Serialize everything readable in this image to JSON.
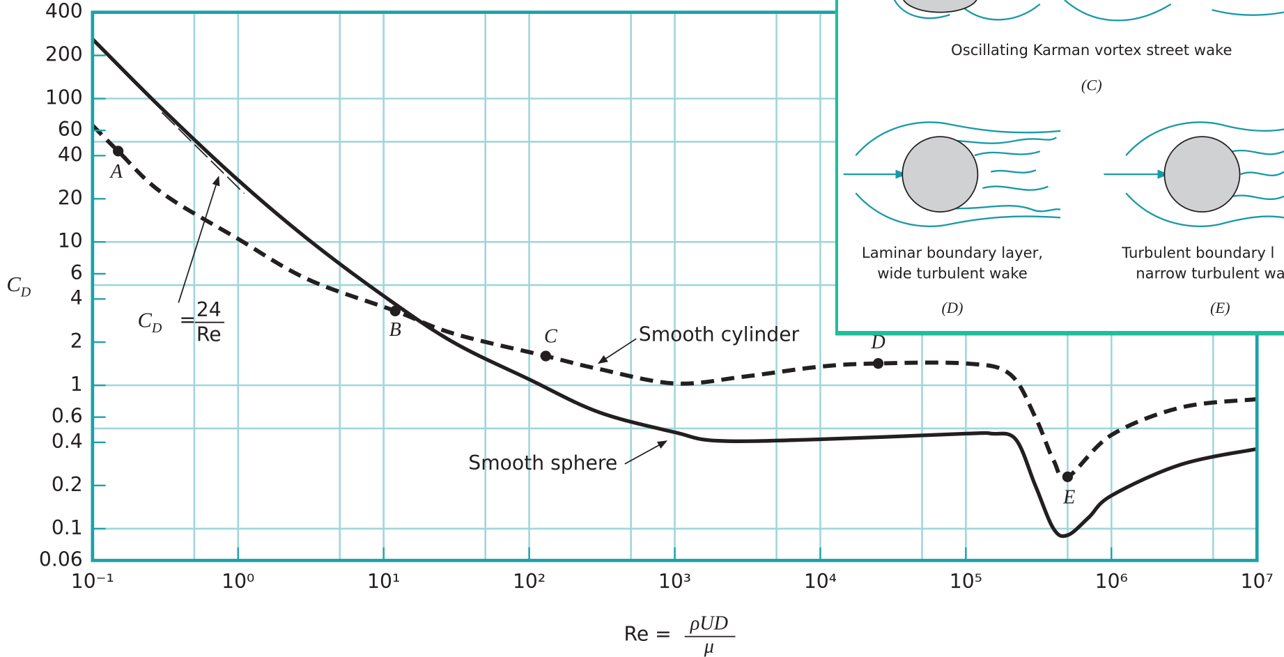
{
  "chart_data": {
    "type": "line",
    "log_x": true,
    "log_y": true,
    "grid": true,
    "x_label": {
      "text": "Re =",
      "numerator": "ρUD",
      "denominator": "μ"
    },
    "y_label": {
      "text": "C",
      "subscript": "D"
    },
    "xlim": [
      0.1,
      10000000
    ],
    "ylim": [
      0.06,
      400
    ],
    "xticks": [
      {
        "value": 0.1,
        "label": "10⁻¹"
      },
      {
        "value": 1,
        "label": "10⁰"
      },
      {
        "value": 10,
        "label": "10¹"
      },
      {
        "value": 100,
        "label": "10²"
      },
      {
        "value": 1000,
        "label": "10³"
      },
      {
        "value": 10000,
        "label": "10⁴"
      },
      {
        "value": 100000,
        "label": "10⁵"
      },
      {
        "value": 1000000,
        "label": "10⁶"
      },
      {
        "value": 10000000,
        "label": "10⁷"
      }
    ],
    "yticks": [
      0.06,
      0.1,
      0.2,
      0.4,
      0.6,
      1,
      2,
      4,
      6,
      10,
      20,
      40,
      60,
      100,
      200,
      400
    ],
    "xgrid": [
      0.5,
      1,
      5,
      10,
      50,
      100,
      500,
      1000,
      5000,
      10000,
      50000,
      100000,
      500000,
      1000000,
      5000000
    ],
    "ygrid": [
      0.1,
      0.5,
      1,
      5,
      10,
      50,
      100
    ],
    "series": [
      {
        "name": "Smooth cylinder",
        "color": "#231f20",
        "dashed": true,
        "x": [
          0.1,
          0.15,
          0.3,
          1,
          3,
          12,
          30,
          130,
          300,
          1000,
          3000,
          10000,
          25000,
          100000,
          200000,
          300000,
          400000,
          500000,
          1000000,
          3000000,
          10000000
        ],
        "values": [
          65,
          43,
          22,
          10.5,
          5.5,
          3.3,
          2.3,
          1.6,
          1.3,
          1.03,
          1.15,
          1.35,
          1.42,
          1.42,
          1.2,
          0.6,
          0.3,
          0.23,
          0.45,
          0.7,
          0.8
        ]
      },
      {
        "name": "Smooth sphere",
        "color": "#231f20",
        "dashed": false,
        "x": [
          0.1,
          0.3,
          1,
          3,
          10,
          30,
          100,
          300,
          1000,
          2000,
          10000,
          100000,
          150000,
          220000,
          300000,
          400000,
          500000,
          700000,
          1000000,
          3000000,
          10000000
        ],
        "values": [
          260,
          85,
          27,
          10.5,
          4.2,
          2.0,
          1.1,
          0.65,
          0.47,
          0.41,
          0.42,
          0.46,
          0.46,
          0.42,
          0.2,
          0.1,
          0.09,
          0.12,
          0.17,
          0.28,
          0.36
        ]
      }
    ],
    "reference": {
      "label": {
        "text": "C",
        "subscript": "D",
        "equals": "=",
        "numerator": "24",
        "denominator": "Re"
      },
      "x": [
        0.3,
        1.1
      ],
      "values": [
        80,
        21.8
      ]
    },
    "points": [
      {
        "label": "A",
        "x": 0.15,
        "y": 43
      },
      {
        "label": "B",
        "x": 12,
        "y": 3.3
      },
      {
        "label": "C",
        "x": 130,
        "y": 1.6
      },
      {
        "label": "D",
        "x": 25000,
        "y": 1.42
      },
      {
        "label": "E",
        "x": 500000,
        "y": 0.23
      }
    ]
  },
  "inset": {
    "panels": [
      {
        "caption": [
          "Oscillating Karman vortex street wake"
        ],
        "tag": "(C)"
      },
      {
        "caption": [
          "Laminar boundary layer,",
          "wide turbulent wake"
        ],
        "tag": "(D)"
      },
      {
        "caption": [
          "Turbulent boundary l",
          "narrow turbulent wa"
        ],
        "tag": "(E)"
      }
    ]
  }
}
